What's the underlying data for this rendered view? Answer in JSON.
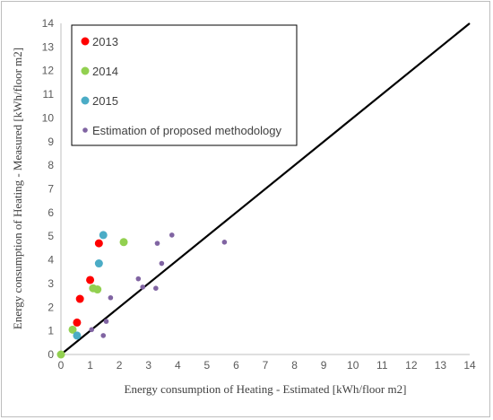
{
  "chart_data": {
    "type": "scatter",
    "xlabel": "Energy consumption of Heating - Estimated  [kWh/floor m2]",
    "ylabel": "Energy consumption of Heating - Measured [kWh/floor m2]",
    "xlim": [
      0,
      14
    ],
    "ylim": [
      0,
      14
    ],
    "x_ticks": [
      0,
      1,
      2,
      3,
      4,
      5,
      6,
      7,
      8,
      9,
      10,
      11,
      12,
      13,
      14
    ],
    "y_ticks": [
      0,
      1,
      2,
      3,
      4,
      5,
      6,
      7,
      8,
      9,
      10,
      11,
      12,
      13,
      14
    ],
    "grid": false,
    "legend_position": "top-left",
    "reference_line": {
      "type": "y=x",
      "color": "#000000"
    },
    "series": [
      {
        "name": "2013",
        "color": "#ff0000",
        "marker": "large",
        "points": [
          [
            0.55,
            1.35
          ],
          [
            0.65,
            2.35
          ],
          [
            1.0,
            3.15
          ],
          [
            1.3,
            4.7
          ]
        ]
      },
      {
        "name": "2014",
        "color": "#92d050",
        "marker": "large",
        "points": [
          [
            0.0,
            0.0
          ],
          [
            0.4,
            1.05
          ],
          [
            1.1,
            2.8
          ],
          [
            1.25,
            2.75
          ],
          [
            2.15,
            4.75
          ]
        ]
      },
      {
        "name": "2015",
        "color": "#4bacc6",
        "marker": "large",
        "points": [
          [
            0.55,
            0.8
          ],
          [
            1.3,
            3.85
          ],
          [
            1.45,
            5.05
          ]
        ]
      },
      {
        "name": "Estimation of proposed methodology",
        "color": "#8064a2",
        "marker": "small",
        "points": [
          [
            1.05,
            1.05
          ],
          [
            1.45,
            0.8
          ],
          [
            1.55,
            1.4
          ],
          [
            1.7,
            2.4
          ],
          [
            2.65,
            3.2
          ],
          [
            2.8,
            2.85
          ],
          [
            3.25,
            2.8
          ],
          [
            3.3,
            4.7
          ],
          [
            3.45,
            3.85
          ],
          [
            3.8,
            5.05
          ],
          [
            5.6,
            4.75
          ]
        ]
      }
    ]
  }
}
